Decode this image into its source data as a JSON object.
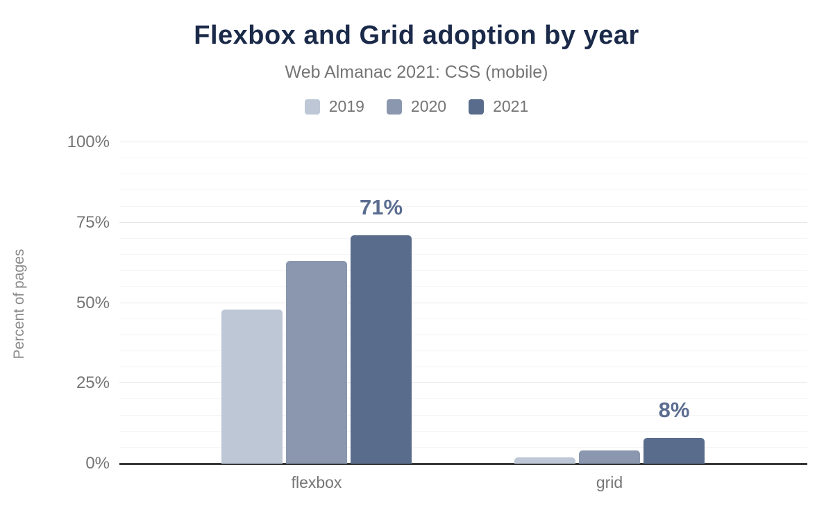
{
  "chart_data": {
    "type": "bar",
    "title": "Flexbox and Grid adoption by year",
    "subtitle": "Web Almanac 2021: CSS (mobile)",
    "ylabel": "Percent of pages",
    "xlabel": "",
    "categories": [
      "flexbox",
      "grid"
    ],
    "series": [
      {
        "name": "2019",
        "color": "#bdc7d6",
        "values": [
          48,
          2
        ]
      },
      {
        "name": "2020",
        "color": "#8a97ae",
        "values": [
          63,
          4
        ]
      },
      {
        "name": "2021",
        "color": "#5a6c8c",
        "values": [
          71,
          8
        ]
      }
    ],
    "annotations": [
      {
        "category": "flexbox",
        "series": "2021",
        "text": "71%"
      },
      {
        "category": "grid",
        "series": "2021",
        "text": "8%"
      }
    ],
    "ylim": [
      0,
      100
    ],
    "yticks": [
      {
        "value": 0,
        "label": "0%"
      },
      {
        "value": 25,
        "label": "25%"
      },
      {
        "value": 50,
        "label": "50%"
      },
      {
        "value": 75,
        "label": "75%"
      },
      {
        "value": 100,
        "label": "100%"
      }
    ],
    "grid": {
      "major_every": 25,
      "minor_every": 5,
      "orientation": "horizontal"
    },
    "legend_position": "top",
    "colors": {
      "title": "#1b2a49",
      "muted_text": "#757575",
      "annotation": "#5b6d90",
      "axis_line": "#383838",
      "gridline_major": "#e7e7e7",
      "gridline_minor": "#f5f5f5",
      "background": "#ffffff"
    }
  }
}
